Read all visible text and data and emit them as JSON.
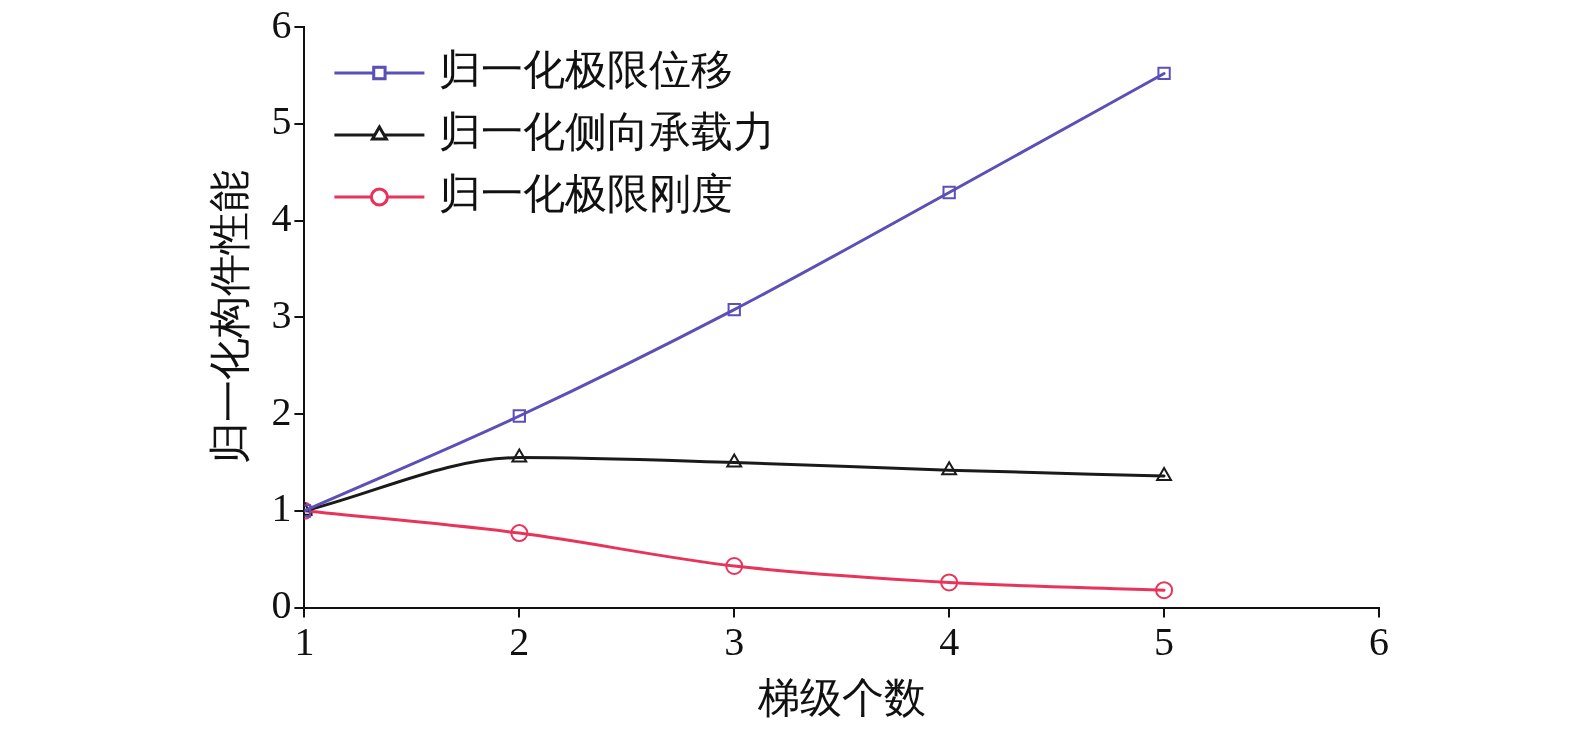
{
  "chart_data": {
    "type": "line",
    "xlabel": "梯级个数",
    "ylabel": "归一化构件性能",
    "x": [
      1,
      2,
      3,
      4,
      5
    ],
    "xlim": [
      1,
      6
    ],
    "xticks": [
      1,
      2,
      3,
      4,
      5,
      6
    ],
    "ylim": [
      0,
      6
    ],
    "yticks": [
      0,
      1,
      2,
      3,
      4,
      5,
      6
    ],
    "grid": false,
    "legend": "top left",
    "line_style": "solid",
    "series": [
      {
        "name": "归一化极限位移",
        "color": "#5b4fb8",
        "marker": "square",
        "values": [
          1.0,
          1.98,
          3.08,
          4.29,
          5.52
        ]
      },
      {
        "name": "归一化侧向承载力",
        "color": "#1a1a1a",
        "marker": "triangle",
        "values": [
          1.0,
          1.55,
          1.5,
          1.42,
          1.36
        ]
      },
      {
        "name": "归一化极限刚度",
        "color": "#e8335a",
        "marker": "circle",
        "values": [
          1.0,
          0.77,
          0.43,
          0.26,
          0.18
        ]
      }
    ]
  }
}
